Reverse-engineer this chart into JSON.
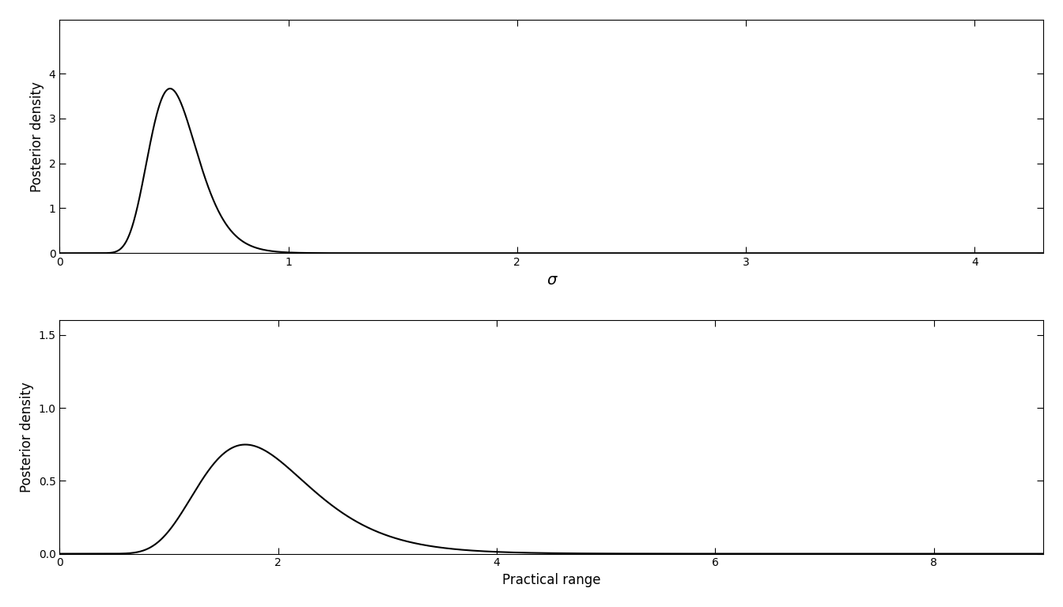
{
  "plot1": {
    "xlabel": "σ",
    "ylabel": "Posterior density",
    "xlim": [
      0,
      4.3
    ],
    "ylim": [
      0,
      5.2
    ],
    "xticks": [
      0,
      1,
      2,
      3,
      4
    ],
    "yticks": [
      0,
      1,
      2,
      3,
      4
    ],
    "mu": -0.68,
    "sigma": 0.22,
    "x_start": 0.001,
    "x_end": 4.3,
    "n_points": 2000
  },
  "plot2": {
    "xlabel": "Practical range",
    "ylabel": "Posterior density",
    "xlim": [
      0,
      9.0
    ],
    "ylim": [
      0,
      1.6
    ],
    "xticks": [
      0,
      2,
      4,
      6,
      8
    ],
    "yticks": [
      0.0,
      0.5,
      1.0,
      1.5
    ],
    "mu": 0.62,
    "sigma": 0.3,
    "x_start": 0.001,
    "x_end": 9.0,
    "n_points": 2000
  },
  "figure": {
    "figsize": [
      13.44,
      7.68
    ],
    "dpi": 100,
    "bg_color": "white",
    "line_color": "black",
    "line_width": 1.5
  }
}
